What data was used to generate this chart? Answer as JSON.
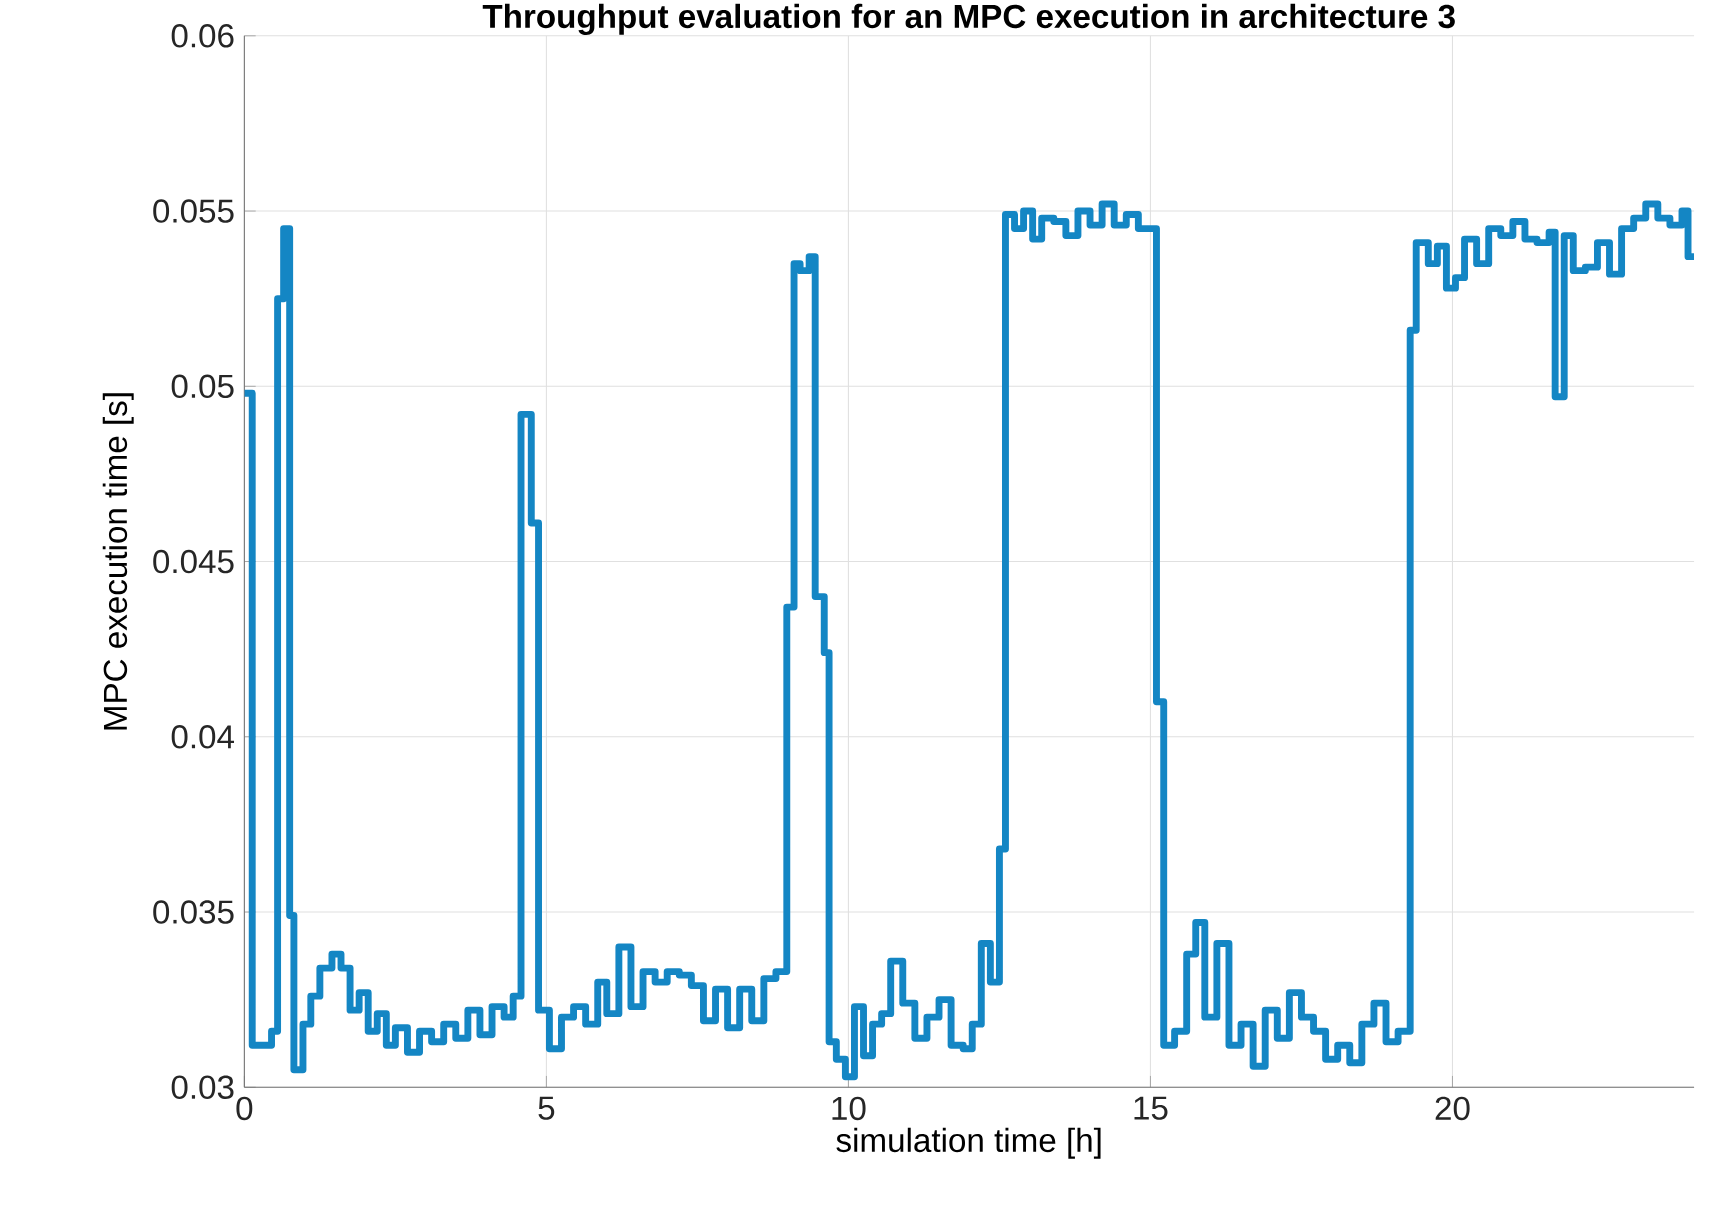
{
  "chart_data": {
    "type": "step",
    "title": "Throughput evaluation for an MPC execution in architecture 3",
    "xlabel": "simulation time [h]",
    "ylabel": "MPC execution time [s]",
    "xlim": [
      0,
      24
    ],
    "ylim": [
      0.03,
      0.06
    ],
    "xticks": [
      0,
      5,
      10,
      15,
      20
    ],
    "yticks": [
      0.03,
      0.035,
      0.04,
      0.045,
      0.05,
      0.055,
      0.06
    ],
    "grid": true,
    "marker": "none",
    "line_style": "solid",
    "series": [
      {
        "color": "#1486c4",
        "x": [
          0,
          0.13,
          0.45,
          0.55,
          0.65,
          0.75,
          0.82,
          0.97,
          1.1,
          1.25,
          1.45,
          1.6,
          1.75,
          1.9,
          2.05,
          2.2,
          2.35,
          2.5,
          2.7,
          2.9,
          3.1,
          3.3,
          3.5,
          3.7,
          3.9,
          4.1,
          4.3,
          4.45,
          4.58,
          4.75,
          4.87,
          5.05,
          5.25,
          5.45,
          5.65,
          5.85,
          6.0,
          6.2,
          6.4,
          6.6,
          6.8,
          7.0,
          7.2,
          7.4,
          7.6,
          7.8,
          8.0,
          8.2,
          8.4,
          8.6,
          8.8,
          8.98,
          9.1,
          9.2,
          9.35,
          9.45,
          9.6,
          9.68,
          9.8,
          9.95,
          10.1,
          10.25,
          10.4,
          10.55,
          10.7,
          10.9,
          11.1,
          11.3,
          11.5,
          11.7,
          11.9,
          12.05,
          12.2,
          12.35,
          12.5,
          12.6,
          12.75,
          12.9,
          13.05,
          13.2,
          13.4,
          13.6,
          13.8,
          14.0,
          14.2,
          14.4,
          14.6,
          14.8,
          15.1,
          15.22,
          15.4,
          15.6,
          15.75,
          15.9,
          16.1,
          16.3,
          16.5,
          16.7,
          16.9,
          17.1,
          17.3,
          17.5,
          17.7,
          17.9,
          18.1,
          18.3,
          18.5,
          18.7,
          18.9,
          19.1,
          19.3,
          19.4,
          19.6,
          19.75,
          19.9,
          20.05,
          20.2,
          20.4,
          20.6,
          20.8,
          21.0,
          21.2,
          21.4,
          21.6,
          21.7,
          21.85,
          22.0,
          22.2,
          22.4,
          22.6,
          22.8,
          23.0,
          23.2,
          23.4,
          23.6,
          23.8,
          23.9,
          24
        ],
        "values": [
          0.0498,
          0.0312,
          0.0316,
          0.0525,
          0.0545,
          0.0349,
          0.0305,
          0.0318,
          0.0326,
          0.0334,
          0.0338,
          0.0334,
          0.0322,
          0.0327,
          0.0316,
          0.0321,
          0.0312,
          0.0317,
          0.031,
          0.0316,
          0.0313,
          0.0318,
          0.0314,
          0.0322,
          0.0315,
          0.0323,
          0.032,
          0.0326,
          0.0492,
          0.0461,
          0.0322,
          0.0311,
          0.032,
          0.0323,
          0.0318,
          0.033,
          0.0321,
          0.034,
          0.0323,
          0.0333,
          0.033,
          0.0333,
          0.0332,
          0.0329,
          0.0319,
          0.0328,
          0.0317,
          0.0328,
          0.0319,
          0.0331,
          0.0333,
          0.0437,
          0.0535,
          0.0533,
          0.0537,
          0.044,
          0.0424,
          0.0313,
          0.0308,
          0.0303,
          0.0323,
          0.0309,
          0.0318,
          0.0321,
          0.0336,
          0.0324,
          0.0314,
          0.032,
          0.0325,
          0.0312,
          0.0311,
          0.0318,
          0.0341,
          0.033,
          0.0368,
          0.0549,
          0.0545,
          0.055,
          0.0542,
          0.0548,
          0.0547,
          0.0543,
          0.055,
          0.0546,
          0.0552,
          0.0546,
          0.0549,
          0.0545,
          0.041,
          0.0312,
          0.0316,
          0.0338,
          0.0347,
          0.032,
          0.0341,
          0.0312,
          0.0318,
          0.0306,
          0.0322,
          0.0314,
          0.0327,
          0.032,
          0.0316,
          0.0308,
          0.0312,
          0.0307,
          0.0318,
          0.0324,
          0.0313,
          0.0316,
          0.0516,
          0.0541,
          0.0535,
          0.054,
          0.0528,
          0.0531,
          0.0542,
          0.0535,
          0.0545,
          0.0543,
          0.0547,
          0.0542,
          0.0541,
          0.0544,
          0.0497,
          0.0543,
          0.0533,
          0.0534,
          0.0541,
          0.0532,
          0.0545,
          0.0548,
          0.0552,
          0.0548,
          0.0546,
          0.055,
          0.0537,
          0.0537
        ]
      }
    ]
  }
}
